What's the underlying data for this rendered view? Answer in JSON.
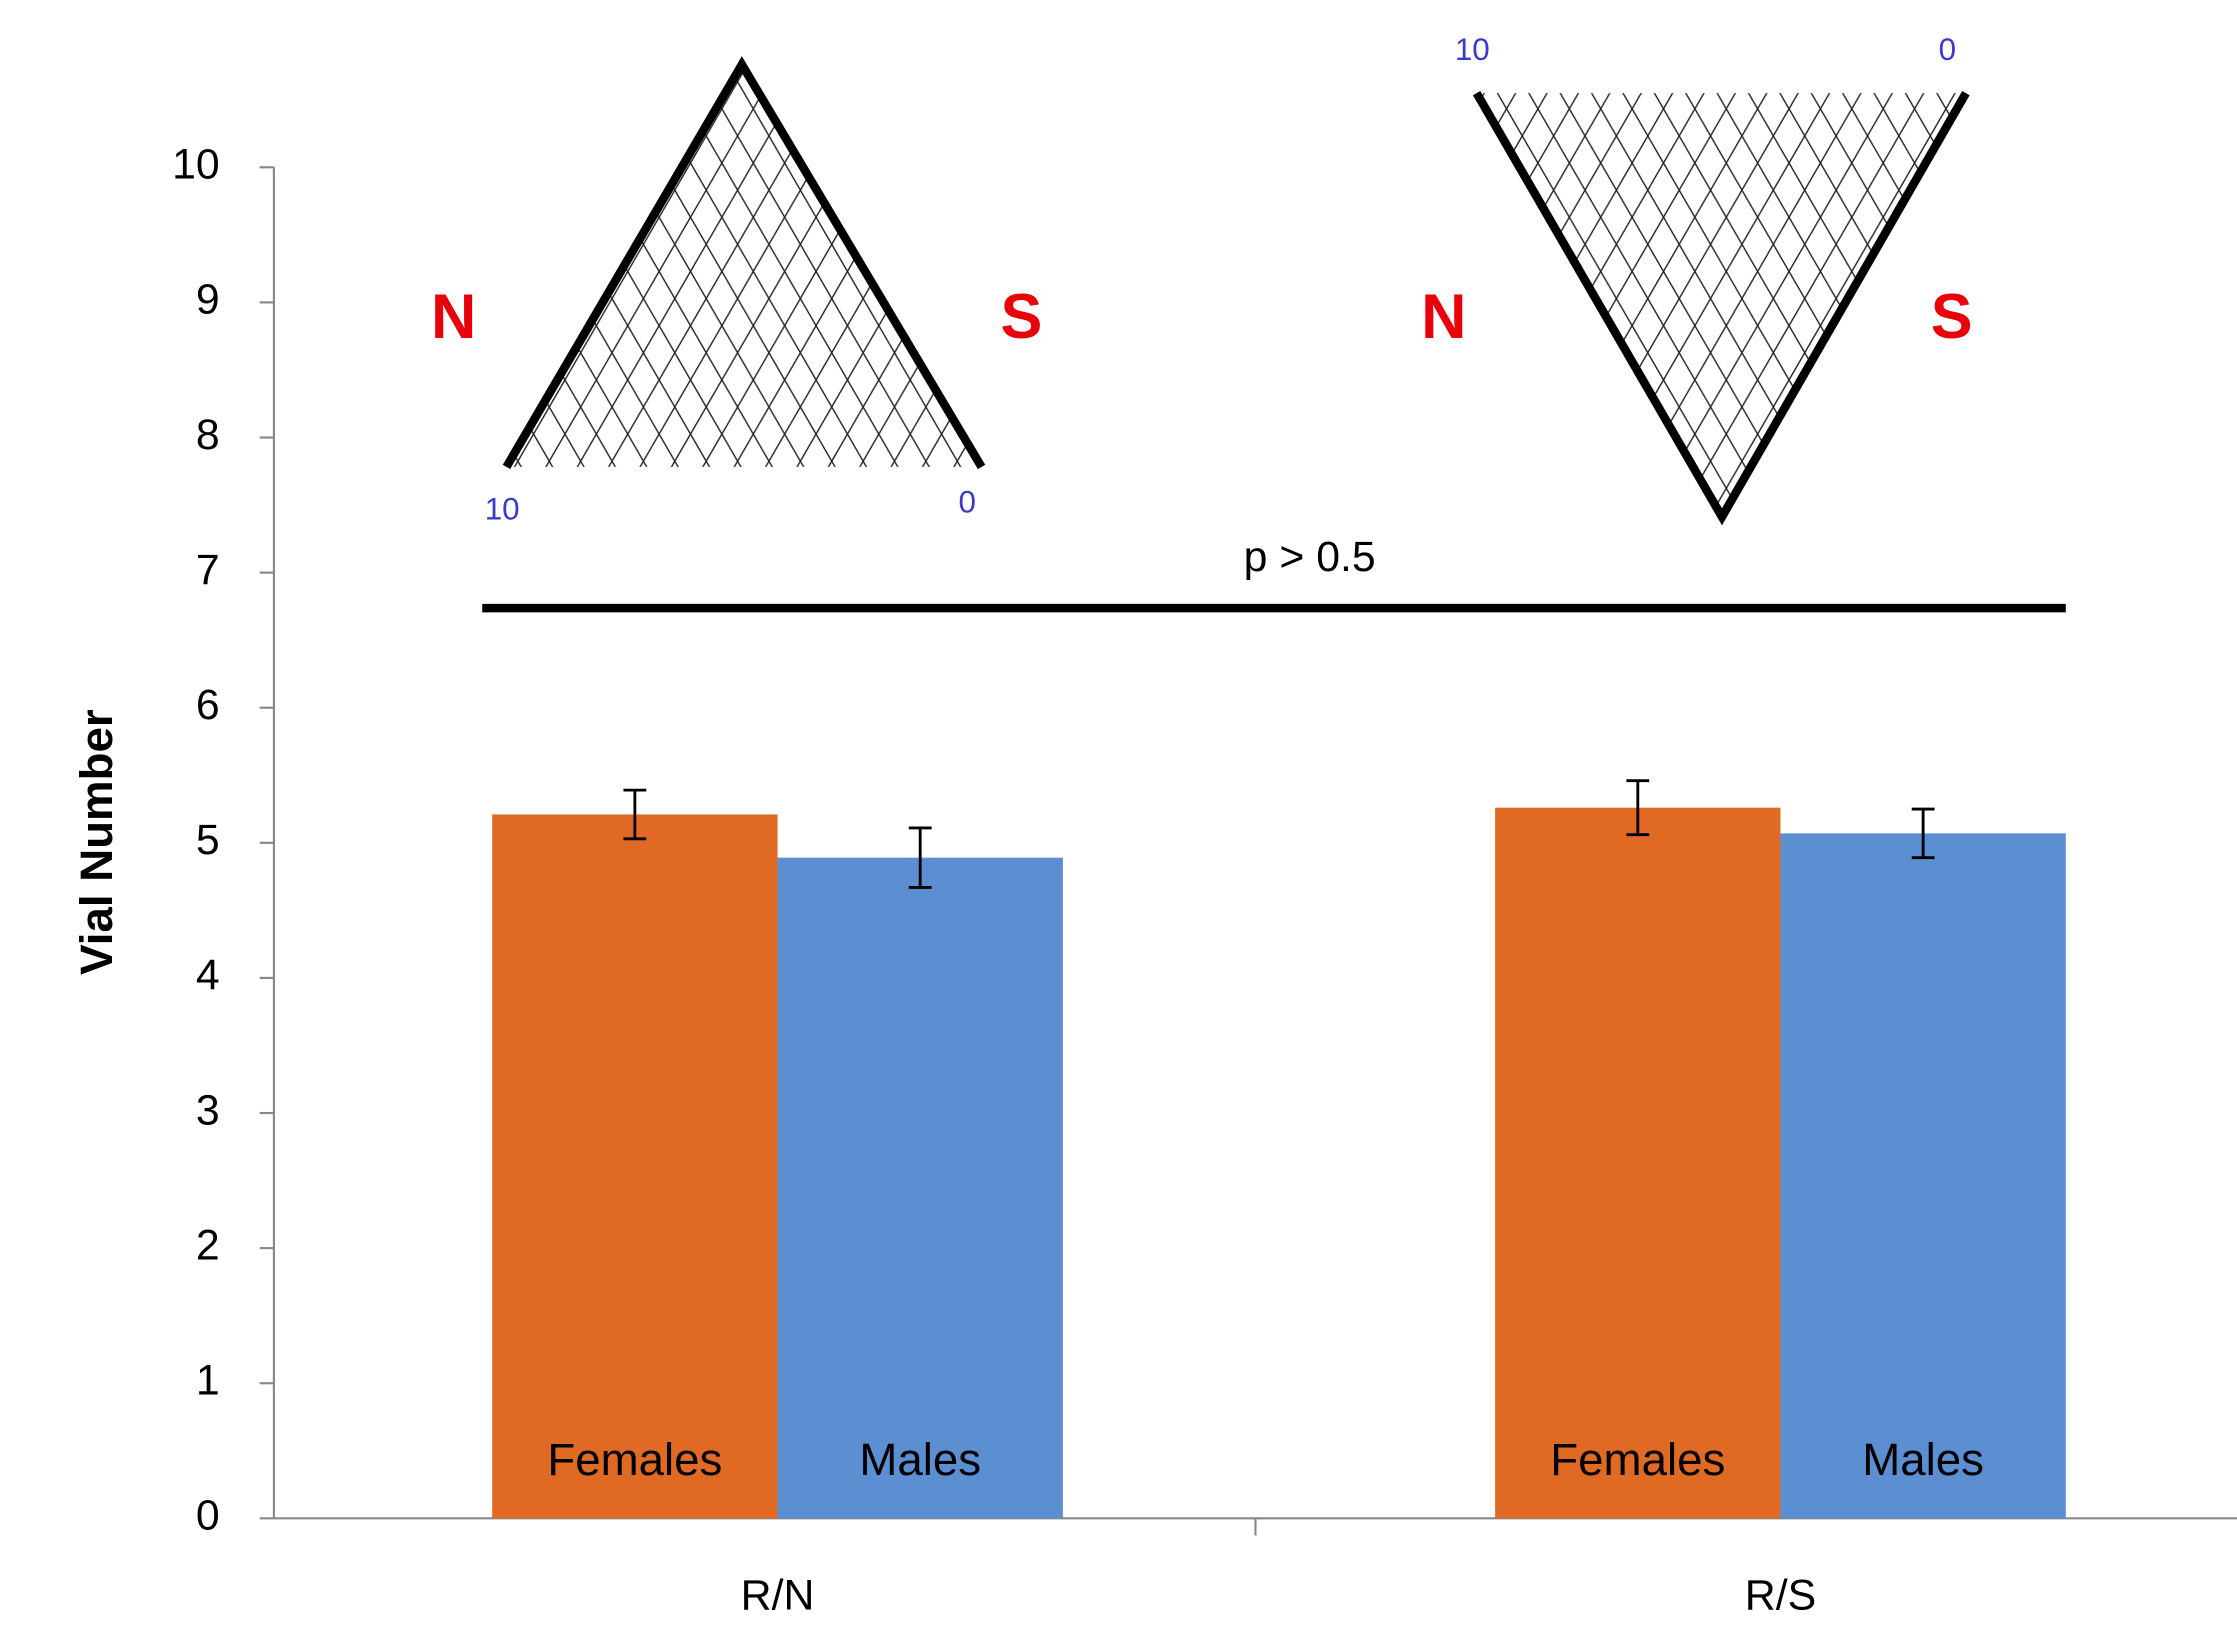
{
  "chart_data": {
    "type": "bar",
    "y_label": "Vial Number",
    "categories": [
      "R/N",
      "R/S"
    ],
    "series": [
      {
        "name": "Females",
        "color": "#e06a23",
        "values": [
          5.21,
          5.26
        ],
        "errors": [
          0.18,
          0.2
        ]
      },
      {
        "name": "Males",
        "color": "#5b8fd2",
        "values": [
          4.89,
          5.07
        ],
        "errors": [
          0.22,
          0.18
        ]
      }
    ],
    "ylim": [
      0,
      10
    ],
    "yticks": [
      0,
      1,
      2,
      3,
      4,
      5,
      6,
      7,
      8,
      9,
      10
    ],
    "annotations": {
      "significance": "p > 0.5",
      "diagrams": [
        {
          "left": "N",
          "right": "S",
          "left_end": "10",
          "right_end": "0"
        },
        {
          "left": "N",
          "right": "S",
          "left_end": "10",
          "right_end": "0"
        }
      ]
    }
  }
}
